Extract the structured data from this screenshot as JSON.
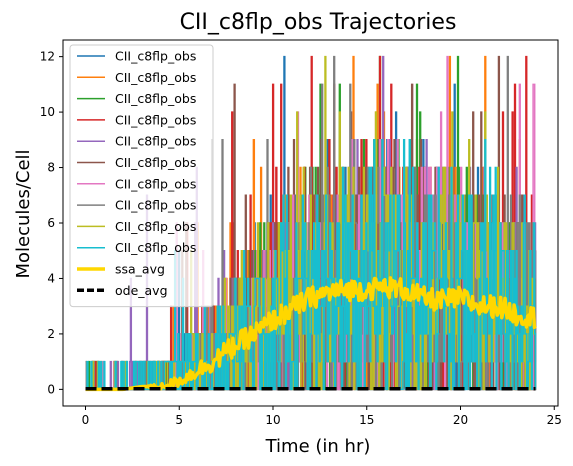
{
  "chart_data": {
    "type": "line",
    "title": "CII_c8flp_obs Trajectories",
    "xlabel": "Time (in hr)",
    "ylabel": "Molecules/Cell",
    "xlim": [
      -1.2,
      25.2
    ],
    "ylim": [
      -0.6,
      12.6
    ],
    "xticks": [
      0,
      5,
      10,
      15,
      20,
      25
    ],
    "yticks": [
      0,
      2,
      4,
      6,
      8,
      10,
      12
    ],
    "x_range": [
      0,
      24
    ],
    "legend_position": "upper-left",
    "trajectory_series": [
      {
        "name": "CII_c8flp_obs",
        "color": "#1f77b4"
      },
      {
        "name": "CII_c8flp_obs",
        "color": "#ff7f0e"
      },
      {
        "name": "CII_c8flp_obs",
        "color": "#2ca02c"
      },
      {
        "name": "CII_c8flp_obs",
        "color": "#d62728"
      },
      {
        "name": "CII_c8flp_obs",
        "color": "#9467bd"
      },
      {
        "name": "CII_c8flp_obs",
        "color": "#8c564b"
      },
      {
        "name": "CII_c8flp_obs",
        "color": "#e377c2"
      },
      {
        "name": "CII_c8flp_obs",
        "color": "#7f7f7f"
      },
      {
        "name": "CII_c8flp_obs",
        "color": "#bcbd22"
      },
      {
        "name": "CII_c8flp_obs",
        "color": "#17becf"
      }
    ],
    "ssa_avg": {
      "name": "ssa_avg",
      "color": "#ffd700",
      "style": "solid-thick",
      "x": [
        0,
        2,
        3,
        4,
        5,
        6,
        7,
        8,
        9,
        10,
        11,
        12,
        13,
        14,
        15,
        16,
        17,
        18,
        19,
        20,
        21,
        22,
        23,
        24
      ],
      "y": [
        0,
        0,
        0.1,
        0.1,
        0.3,
        0.7,
        1.1,
        1.6,
        2.0,
        2.5,
        2.9,
        3.3,
        3.5,
        3.6,
        3.6,
        3.7,
        3.6,
        3.3,
        3.2,
        3.3,
        3.0,
        3.0,
        2.7,
        2.6
      ]
    },
    "ode_avg": {
      "name": "ode_avg",
      "color": "#000000",
      "style": "dashed-thick",
      "x": [
        0,
        24
      ],
      "y": [
        0.02,
        0.02
      ]
    }
  }
}
